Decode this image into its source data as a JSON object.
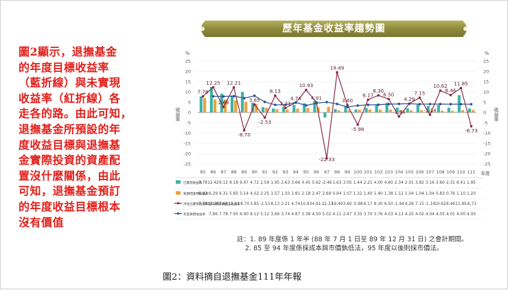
{
  "left_text_lines": [
    "圖2顯示，退撫基金",
    "的年度目標收益率",
    "（藍折線）與未實現",
    "收益率（紅折線）各",
    "走各的路。由此可知，",
    "退撫基金所預設的年",
    "度收益目標與退撫基",
    "金實際投資的資產配",
    "置沒什麼關係，由此",
    "可知，退撫基金預訂",
    "的年度收益目標根本",
    "沒有價值"
  ],
  "caption": "圖2：資料摘自退撫基金111年年報",
  "footnote": [
    "註：1. 89 年度係 1 年半 (88 年 7 月 1 日至 89 年 12 月 31 日) 之會計期間。",
    "2. 85 至 94 年度係採成本與市價孰低法，95 年度以後則採市價法。"
  ],
  "chart_data": {
    "type": "bar",
    "title": "歷年基金收益率趨勢圖",
    "ylabel_left": "收益率",
    "ylabel_right": "收益率",
    "y_unit": "%",
    "x_axis_suffix": "年度",
    "ylim": [
      -25,
      25
    ],
    "y_ticks": [
      25,
      20,
      15,
      10,
      5,
      0,
      -5,
      -10,
      -15,
      -20,
      -25
    ],
    "categories": [
      "85",
      "86",
      "87",
      "88",
      "89",
      "90",
      "91",
      "92",
      "93",
      "94",
      "95",
      "96",
      "97",
      "98",
      "99",
      "100",
      "101",
      "102",
      "103",
      "104",
      "105",
      "106",
      "107",
      "108",
      "109",
      "110",
      "111"
    ],
    "series": [
      {
        "name": "已實現收益率",
        "kind": "bar",
        "color": "#3fb3a8",
        "values": [
          7.78,
          12.42,
          9.12,
          8.18,
          9.97,
          4.72,
          2.59,
          1.95,
          2.63,
          3.66,
          4.45,
          5.62,
          -2.46,
          1.63,
          3.05,
          1.44,
          2.21,
          4.0,
          4.6,
          2.34,
          2.01,
          3.82,
          3.16,
          3.6,
          2.31,
          8.41,
          1.95
        ]
      },
      {
        "name": "要期間運用收益率",
        "kind": "bar",
        "color": "#e8a33a",
        "values": [
          6.93,
          6.29,
          6.31,
          5.85,
          5.14,
          4.02,
          2.25,
          1.57,
          1.5,
          1.81,
          2.18,
          2.47,
          2.69,
          0.94,
          1.07,
          1.32,
          1.4,
          1.4,
          1.38,
          1.12,
          1.04,
          1.04,
          1.04,
          0.83,
          0.76,
          1.1,
          1.2
        ]
      },
      {
        "name": "評估已實現收益率暨未實現損益之收益率",
        "kind": "line",
        "color": "#8b2a45",
        "values": [
          7.78,
          12.25,
          2.68,
          12.21,
          -8.7,
          3.85,
          -2.53,
          8.13,
          2.21,
          4.74,
          10.93,
          4.91,
          -22.33,
          19.49,
          3.6,
          -5.98,
          6.17,
          8.3,
          6.5,
          -1.94,
          4.29,
          7.15,
          -1.14,
          10.62,
          8.46,
          11.85,
          -6.73
        ]
      },
      {
        "name": "年度目標收益率",
        "kind": "line",
        "color": "#2a4f8f",
        "values": [
          null,
          7.86,
          7.78,
          7.95,
          6.9,
          8.12,
          5.12,
          3.69,
          3.74,
          4.87,
          3.38,
          4.5,
          5.02,
          4.11,
          2.67,
          3.35,
          3.7,
          3.76,
          4.03,
          4.13,
          4.25,
          4.02,
          4.04,
          4.05,
          4.01,
          4.0,
          4.0
        ]
      }
    ],
    "point_labels": [
      {
        "index": 0,
        "text": "7.78"
      },
      {
        "index": 1,
        "text": "12.25"
      },
      {
        "index": 2,
        "text": "2.68"
      },
      {
        "index": 3,
        "text": "12.21"
      },
      {
        "index": 4,
        "text": "-8.70"
      },
      {
        "index": 5,
        "text": "3.85"
      },
      {
        "index": 6,
        "text": "-2.53"
      },
      {
        "index": 7,
        "text": "8.13"
      },
      {
        "index": 8,
        "text": "2.21"
      },
      {
        "index": 9,
        "text": "4.74"
      },
      {
        "index": 10,
        "text": "10.93"
      },
      {
        "index": 11,
        "text": "4.91"
      },
      {
        "index": 12,
        "text": "-22.33"
      },
      {
        "index": 13,
        "text": "19.49"
      },
      {
        "index": 14,
        "text": "3.60"
      },
      {
        "index": 15,
        "text": "-5.98"
      },
      {
        "index": 16,
        "text": "6.17"
      },
      {
        "index": 17,
        "text": "8.30"
      },
      {
        "index": 18,
        "text": "6.50"
      },
      {
        "index": 19,
        "text": "-1.94"
      },
      {
        "index": 20,
        "text": "4.29"
      },
      {
        "index": 21,
        "text": "7.15"
      },
      {
        "index": 22,
        "text": "-1.14"
      },
      {
        "index": 23,
        "text": "10.62"
      },
      {
        "index": 24,
        "text": "8.46"
      },
      {
        "index": 25,
        "text": "11.85"
      },
      {
        "index": 26,
        "text": "-6.73"
      }
    ],
    "table": {
      "rows": [
        {
          "label": "已實現收益率",
          "series_index": 0,
          "cells": [
            "7.78",
            "12.42",
            "9.12",
            "8.18",
            "9.97",
            "4.72",
            "2.59",
            "1.95",
            "2.63",
            "3.66",
            "4.45",
            "5.62",
            "-2.46",
            "1.63",
            "3.05",
            "1.44",
            "2.21",
            "4.00",
            "4.60",
            "2.34",
            "2.01",
            "3.82",
            "3.16",
            "3.60",
            "2.31",
            "8.41",
            "1.95"
          ]
        },
        {
          "label": "要期間運用收益率",
          "series_index": 1,
          "cells": [
            "6.93",
            "6.29",
            "6.31",
            "5.85",
            "5.14",
            "4.02",
            "2.25",
            "1.57",
            "1.50",
            "1.81",
            "2.18",
            "2.47",
            "2.69",
            "0.94",
            "1.07",
            "1.32",
            "1.40",
            "1.40",
            "1.38",
            "1.12",
            "1.04",
            "1.04",
            "1.04",
            "0.83",
            "0.76",
            "1.10",
            "1.20"
          ]
        },
        {
          "label": "評估已實現收益率暨未實現損益之收益率",
          "series_index": 2,
          "cells": [
            "7.78",
            "12.25",
            "2.68",
            "12.21",
            "-8.70",
            "3.85",
            "-2.53",
            "8.13",
            "2.21",
            "4.74",
            "10.93",
            "4.91",
            "-22.33",
            "19.49",
            "3.60",
            "-5.98",
            "6.17",
            "8.30",
            "6.50",
            "-1.94",
            "4.29",
            "7.15",
            "-1.14",
            "10.62",
            "8.46",
            "11.85",
            "-6.73"
          ]
        },
        {
          "label": "年度目標收益率",
          "series_index": 3,
          "cells": [
            "",
            "7.86",
            "7.78",
            "7.95",
            "6.90",
            "8.12",
            "5.12",
            "3.69",
            "3.74",
            "4.87",
            "3.38",
            "4.50",
            "5.02",
            "4.11",
            "2.67",
            "3.35",
            "3.70",
            "3.76",
            "4.03",
            "4.13",
            "4.25",
            "4.02",
            "4.04",
            "4.05",
            "4.01",
            "4.00",
            "4.00"
          ]
        }
      ]
    },
    "colors": {
      "title_bar": "#8a8f3c",
      "axis_text": "#555555",
      "zero_line": "#777777"
    }
  }
}
